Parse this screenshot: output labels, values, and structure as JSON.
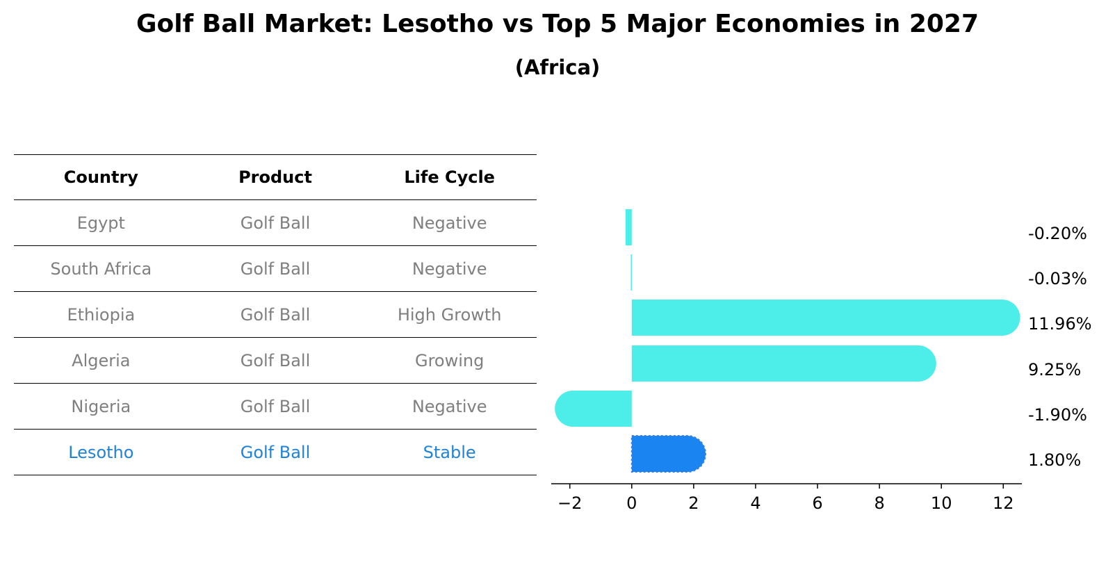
{
  "title": "Golf Ball Market: Lesotho vs Top 5 Major Economies in 2027",
  "subtitle": "(Africa)",
  "table": {
    "headers": [
      "Country",
      "Product",
      "Life Cycle"
    ],
    "rows": [
      [
        "Egypt",
        "Golf Ball",
        "Negative"
      ],
      [
        "South Africa",
        "Golf Ball",
        "Negative"
      ],
      [
        "Ethiopia",
        "Golf Ball",
        "High Growth"
      ],
      [
        "Algeria",
        "Golf Ball",
        "Growing"
      ],
      [
        "Nigeria",
        "Golf Ball",
        "Negative"
      ],
      [
        "Lesotho",
        "Golf Ball",
        "Stable"
      ]
    ]
  },
  "chart_data": {
    "type": "bar",
    "orientation": "horizontal",
    "categories": [
      "Egypt",
      "South Africa",
      "Ethiopia",
      "Algeria",
      "Nigeria",
      "Lesotho"
    ],
    "values": [
      -0.2,
      -0.03,
      11.96,
      9.25,
      -1.9,
      1.8
    ],
    "value_labels": [
      "-0.20%",
      "-0.03%",
      "11.96%",
      "9.25%",
      "-1.90%",
      "1.80%"
    ],
    "xlim": [
      -2.6,
      12.6
    ],
    "xticks": [
      -2,
      0,
      2,
      4,
      6,
      8,
      10,
      12
    ],
    "xtick_labels": [
      "−2",
      "0",
      "2",
      "4",
      "6",
      "8",
      "10",
      "12"
    ],
    "highlight": "Lesotho",
    "colors": {
      "default": "#4deeea",
      "highlight": "#1a85f0"
    }
  },
  "colors": {
    "text_muted": "#7f7f7f",
    "text_highlight": "#1f83d8"
  }
}
